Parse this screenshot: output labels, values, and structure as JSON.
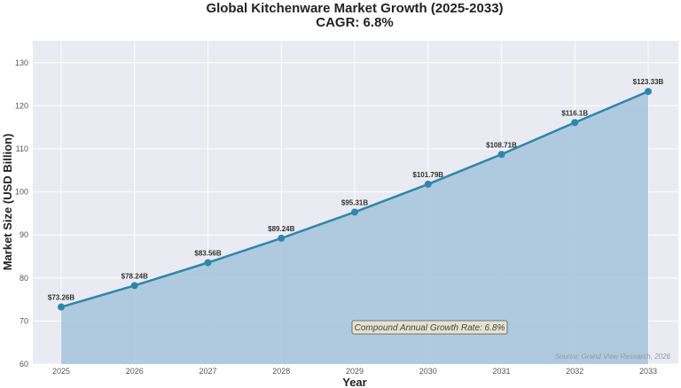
{
  "chart_data": {
    "type": "area",
    "title": "Global Kitchenware Market Growth (2025-2033)",
    "subtitle": "CAGR: 6.8%",
    "xlabel": "Year",
    "ylabel": "Market Size (USD Billion)",
    "categories": [
      "2025",
      "2026",
      "2027",
      "2028",
      "2029",
      "2030",
      "2031",
      "2032",
      "2033"
    ],
    "values": [
      73.26,
      78.24,
      83.56,
      89.24,
      95.31,
      101.79,
      108.71,
      116.1,
      123.33
    ],
    "data_labels": [
      "$73.26B",
      "$78.24B",
      "$83.56B",
      "$89.24B",
      "$95.31B",
      "$101.79B",
      "$108.71B",
      "$116.1B",
      "$123.33B"
    ],
    "ylim": [
      60,
      135
    ],
    "yticks": [
      60,
      70,
      80,
      90,
      100,
      110,
      120,
      130
    ],
    "grid": true,
    "annotation": "Compound Annual Growth Rate: 6.8%",
    "source": "Source: Grand View Research, 2026",
    "colors": {
      "line": "#2e86ab",
      "fill": "#a9c6dc",
      "background": "#eaeaf2"
    }
  }
}
